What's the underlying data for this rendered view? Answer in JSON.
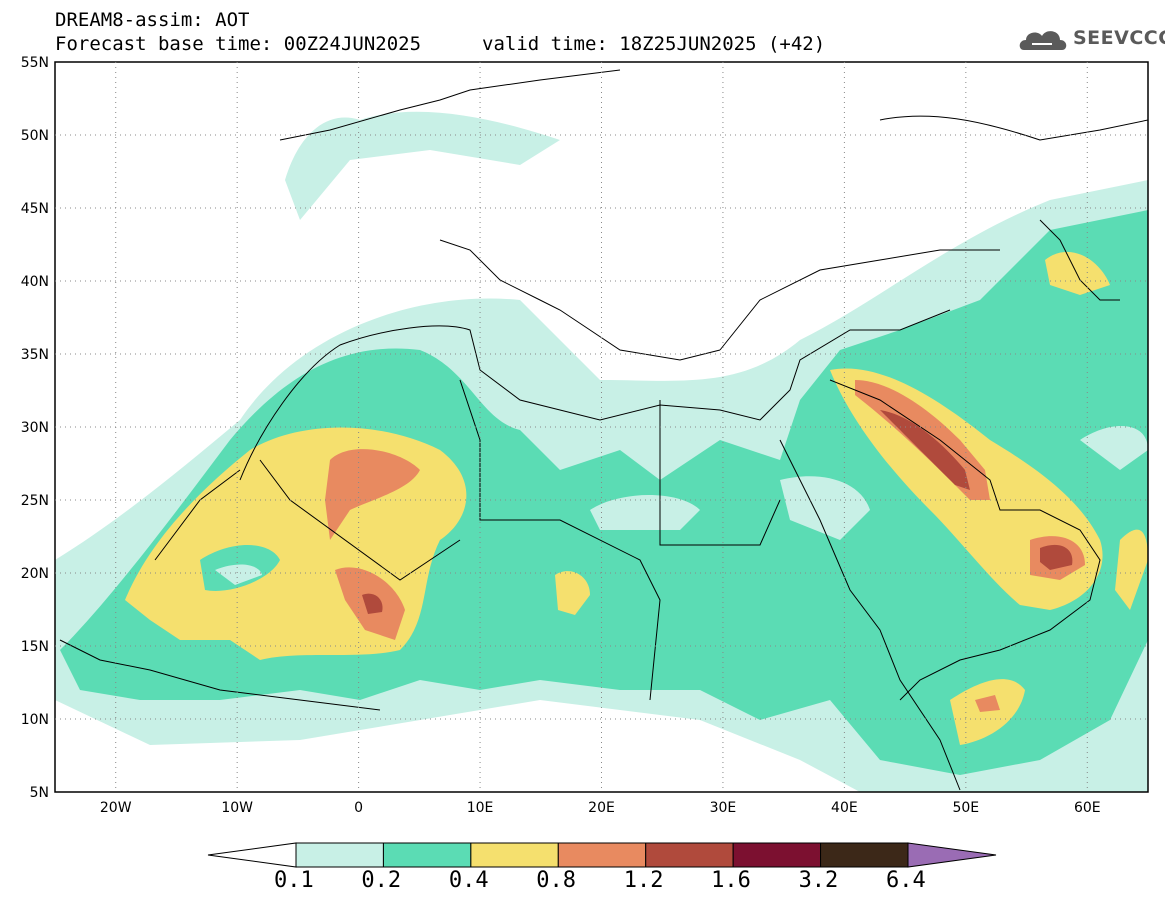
{
  "header": {
    "title": "DREAM8-assim: AOT",
    "forecast_base": "Forecast base time: 00Z24JUN2025",
    "valid_time": "valid time: 18Z25JUN2025 (+42)"
  },
  "logo": {
    "text": "SEEVCCC",
    "icon": "cloud-icon"
  },
  "map": {
    "lon_range": [
      -25,
      65
    ],
    "lat_range": [
      5,
      55
    ],
    "lat_labels": [
      "55N",
      "50N",
      "45N",
      "40N",
      "35N",
      "30N",
      "25N",
      "20N",
      "15N",
      "10N",
      "5N"
    ],
    "lon_labels": [
      "20W",
      "10W",
      "0",
      "10E",
      "20E",
      "30E",
      "40E",
      "50E",
      "60E"
    ]
  },
  "colorbar": {
    "labels": [
      "0.1",
      "0.2",
      "0.4",
      "0.8",
      "1.2",
      "1.6",
      "3.2",
      "6.4"
    ],
    "colors": [
      "#ffffff",
      "#c8f0e6",
      "#5bdcb4",
      "#f5e06e",
      "#e88a60",
      "#b04a3c",
      "#7c1030",
      "#3c2818",
      "#9a6cb4"
    ]
  }
}
